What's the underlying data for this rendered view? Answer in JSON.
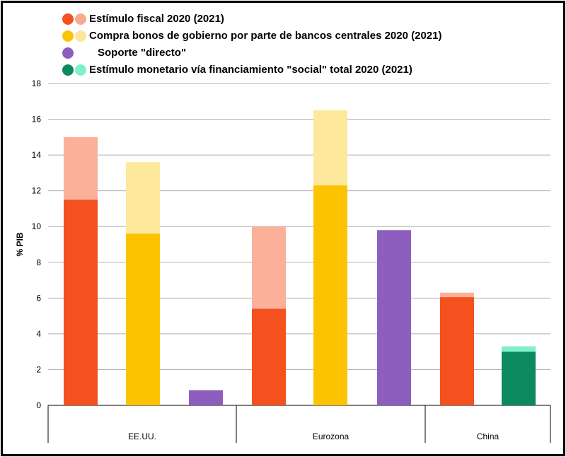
{
  "chart_data": {
    "type": "bar",
    "ylabel": "% PIB",
    "ylim": [
      0,
      18
    ],
    "yticks": [
      0,
      2,
      4,
      6,
      8,
      10,
      12,
      14,
      16,
      18
    ],
    "grid": true,
    "legend_position": "top-left",
    "legend": [
      {
        "label": "Estímulo fiscal 2020 (2021)",
        "colors": [
          "#f4511e",
          "#f9a98e"
        ]
      },
      {
        "label": "Compra bonos de gobierno por parte de bancos centrales 2020 (2021)",
        "colors": [
          "#fcc400",
          "#fde59a"
        ]
      },
      {
        "label": "Soporte \"directo\"",
        "colors": [
          "#8e5ebe"
        ]
      },
      {
        "label": "Estímulo monetario vía financiamiento \"social\" total 2020 (2021)",
        "colors": [
          "#0a8a5e",
          "#7ff0c8"
        ]
      }
    ],
    "groups": [
      "EE.UU.",
      "Eurozona",
      "China"
    ],
    "bars": [
      {
        "group": "EE.UU.",
        "series": "Estímulo fiscal",
        "value_2020": 11.5,
        "value_total_2021": 15.0,
        "color": "#f4511e",
        "color_2021": "#fbb09a"
      },
      {
        "group": "EE.UU.",
        "series": "Compra bonos de gobierno",
        "value_2020": 9.6,
        "value_total_2021": 13.6,
        "color": "#fcc400",
        "color_2021": "#fde89c"
      },
      {
        "group": "EE.UU.",
        "series": "Soporte \"directo\"",
        "value_2020": 0.85,
        "value_total_2021": 0.85,
        "color": "#8e5ebe",
        "color_2021": "#8e5ebe"
      },
      {
        "group": "Eurozona",
        "series": "Estímulo fiscal",
        "value_2020": 5.4,
        "value_total_2021": 10.0,
        "color": "#f4511e",
        "color_2021": "#fbb09a"
      },
      {
        "group": "Eurozona",
        "series": "Compra bonos de gobierno",
        "value_2020": 12.3,
        "value_total_2021": 16.5,
        "color": "#fcc400",
        "color_2021": "#fde89c"
      },
      {
        "group": "Eurozona",
        "series": "Soporte \"directo\"",
        "value_2020": 9.8,
        "value_total_2021": 9.8,
        "color": "#8e5ebe",
        "color_2021": "#8e5ebe"
      },
      {
        "group": "China",
        "series": "Estímulo fiscal",
        "value_2020": 6.05,
        "value_total_2021": 6.3,
        "color": "#f4511e",
        "color_2021": "#fbb09a"
      },
      {
        "group": "China",
        "series": "Estímulo monetario vía financiamiento social",
        "value_2020": 3.0,
        "value_total_2021": 3.3,
        "color": "#0a8a5e",
        "color_2021": "#7ff0c8"
      }
    ]
  }
}
